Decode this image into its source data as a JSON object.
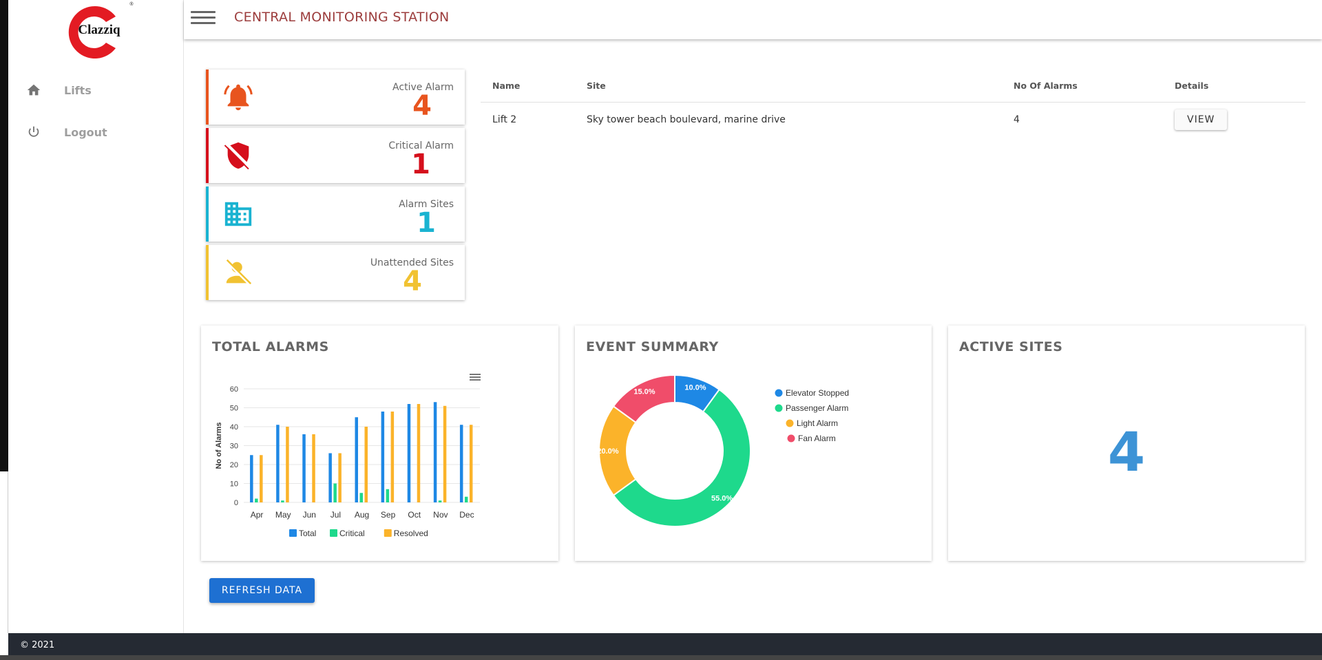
{
  "app": {
    "title": "CENTRAL MONITORING STATION",
    "logo_text": "Clazziq"
  },
  "sidebar": {
    "items": [
      {
        "label": "Lifts",
        "icon": "home-icon"
      },
      {
        "label": "Logout",
        "icon": "power-icon"
      }
    ]
  },
  "stats": [
    {
      "label": "Active Alarm",
      "value": "4",
      "color": "#e8541e",
      "icon": "bell-icon"
    },
    {
      "label": "Critical Alarm",
      "value": "1",
      "color": "#d50f1c",
      "icon": "shield-off-icon"
    },
    {
      "label": "Alarm Sites",
      "value": "1",
      "color": "#1ab3d1",
      "icon": "building-icon"
    },
    {
      "label": "Unattended Sites",
      "value": "4",
      "color": "#f1c232",
      "icon": "person-off-icon"
    }
  ],
  "table": {
    "headers": [
      "Name",
      "Site",
      "No Of Alarms",
      "Details"
    ],
    "rows": [
      {
        "name": "Lift 2",
        "site": "Sky tower beach boulevard, marine drive",
        "alarms": "4",
        "action": "VIEW"
      }
    ]
  },
  "panels": {
    "total_alarms_title": "TOTAL ALARMS",
    "event_summary_title": "EVENT SUMMARY",
    "active_sites_title": "ACTIVE SITES",
    "active_sites_value": "4"
  },
  "refresh_label": "REFRESH DATA",
  "footer": "© 2021",
  "chart_data": [
    {
      "type": "bar",
      "categories": [
        "Apr",
        "May",
        "Jun",
        "Jul",
        "Aug",
        "Sep",
        "Oct",
        "Nov",
        "Dec"
      ],
      "series": [
        {
          "name": "Total",
          "color": "#1e88e5",
          "values": [
            25,
            41,
            36,
            26,
            45,
            48,
            52,
            53,
            41
          ]
        },
        {
          "name": "Critical",
          "color": "#1ed98c",
          "values": [
            2,
            1,
            0,
            10,
            5,
            7,
            0,
            1,
            3
          ]
        },
        {
          "name": "Resolved",
          "color": "#fbb32a",
          "values": [
            25,
            40,
            36,
            26,
            40,
            48,
            52,
            51,
            41
          ]
        }
      ],
      "ylabel": "No of Alarms",
      "ylim": [
        0,
        60
      ],
      "yticks": [
        0,
        10,
        20,
        30,
        40,
        50,
        60
      ],
      "legend": "bottom"
    },
    {
      "type": "pie",
      "labels": [
        "Elevator Stopped",
        "Passenger Alarm",
        "Light Alarm",
        "Fan Alarm"
      ],
      "values": [
        10.0,
        55.0,
        20.0,
        15.0
      ],
      "value_labels": [
        "10.0%",
        "55.0%",
        "20.0%",
        "15.0%"
      ],
      "colors": [
        "#1e88e5",
        "#1ed98c",
        "#fbb32a",
        "#f04d6a"
      ],
      "legend": "right"
    }
  ]
}
